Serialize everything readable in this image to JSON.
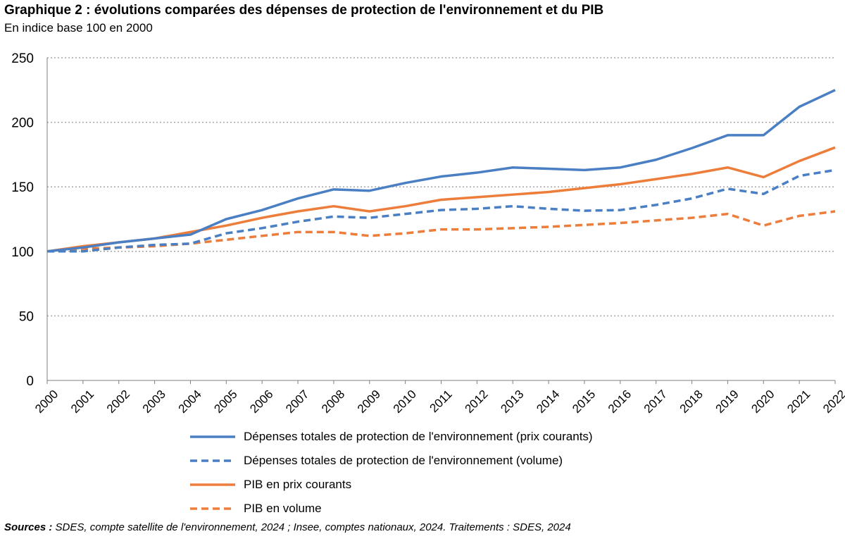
{
  "chart_data": {
    "type": "line",
    "title": "Graphique 2 : évolutions comparées des dépenses de protection de l'environnement et du PIB",
    "subtitle": "En indice base 100 en 2000",
    "xlabel": "",
    "ylabel": "",
    "ylim": [
      0,
      250
    ],
    "yticks": [
      0,
      50,
      100,
      150,
      200,
      250
    ],
    "grid": "horizontal dotted",
    "legend_placement": "bottom",
    "x": [
      "2000",
      "2001",
      "2002",
      "2003",
      "2004",
      "2005",
      "2006",
      "2007",
      "2008",
      "2009",
      "2010",
      "2011",
      "2012",
      "2013",
      "2014",
      "2015",
      "2016",
      "2017",
      "2018",
      "2019",
      "2020",
      "2021",
      "2022"
    ],
    "series": [
      {
        "name": "Dépenses totales de protection de l'environnement (prix courants)",
        "color": "#4a7fc4",
        "dash": "solid",
        "values": [
          100,
          103,
          107,
          110,
          113,
          125,
          132,
          141,
          148,
          147,
          153,
          158,
          161,
          165,
          164,
          163,
          165,
          171,
          180,
          190,
          190,
          212,
          225
        ]
      },
      {
        "name": "Dépenses totales de protection de l'environnement (volume)",
        "color": "#4a7fc4",
        "dash": "dashed",
        "values": [
          100,
          100,
          103,
          105,
          106,
          114,
          118,
          123,
          127,
          126,
          129,
          132,
          133,
          135,
          133,
          131.5,
          132,
          136,
          141,
          148.5,
          144.5,
          158.5,
          163
        ]
      },
      {
        "name": "PIB en prix courants",
        "color": "#ed7d3a",
        "dash": "solid",
        "values": [
          100,
          104,
          107,
          110,
          115,
          120,
          126,
          131,
          135,
          131,
          135,
          140,
          142,
          144,
          146,
          149,
          152,
          156,
          160,
          165,
          157.5,
          170,
          180.5
        ]
      },
      {
        "name": "PIB en volume",
        "color": "#ed7d3a",
        "dash": "dashed",
        "values": [
          100,
          102,
          103,
          104,
          106,
          109,
          112,
          115,
          115,
          112,
          114,
          117,
          117,
          118,
          119,
          120.5,
          122,
          124,
          126,
          129,
          120,
          127.5,
          131
        ]
      }
    ]
  },
  "sources": {
    "label": "Sources :",
    "text": " SDES, compte satellite de l'environnement, 2024 ; Insee, comptes nationaux, 2024. Traitements : SDES, 2024"
  }
}
